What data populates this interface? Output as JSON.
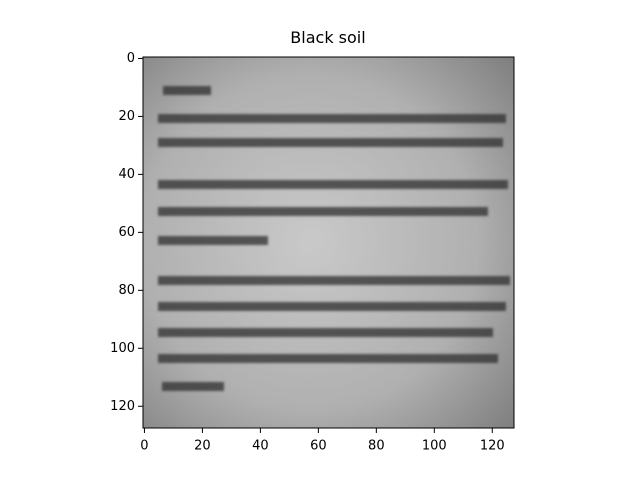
{
  "chart_data": {
    "type": "image",
    "title": "Black soil",
    "xlim": [
      -0.5,
      127.5
    ],
    "ylim": [
      127.5,
      -0.5
    ],
    "xticks": [
      0,
      20,
      40,
      60,
      80,
      100,
      120
    ],
    "yticks": [
      0,
      20,
      40,
      60,
      80,
      100,
      120
    ]
  }
}
